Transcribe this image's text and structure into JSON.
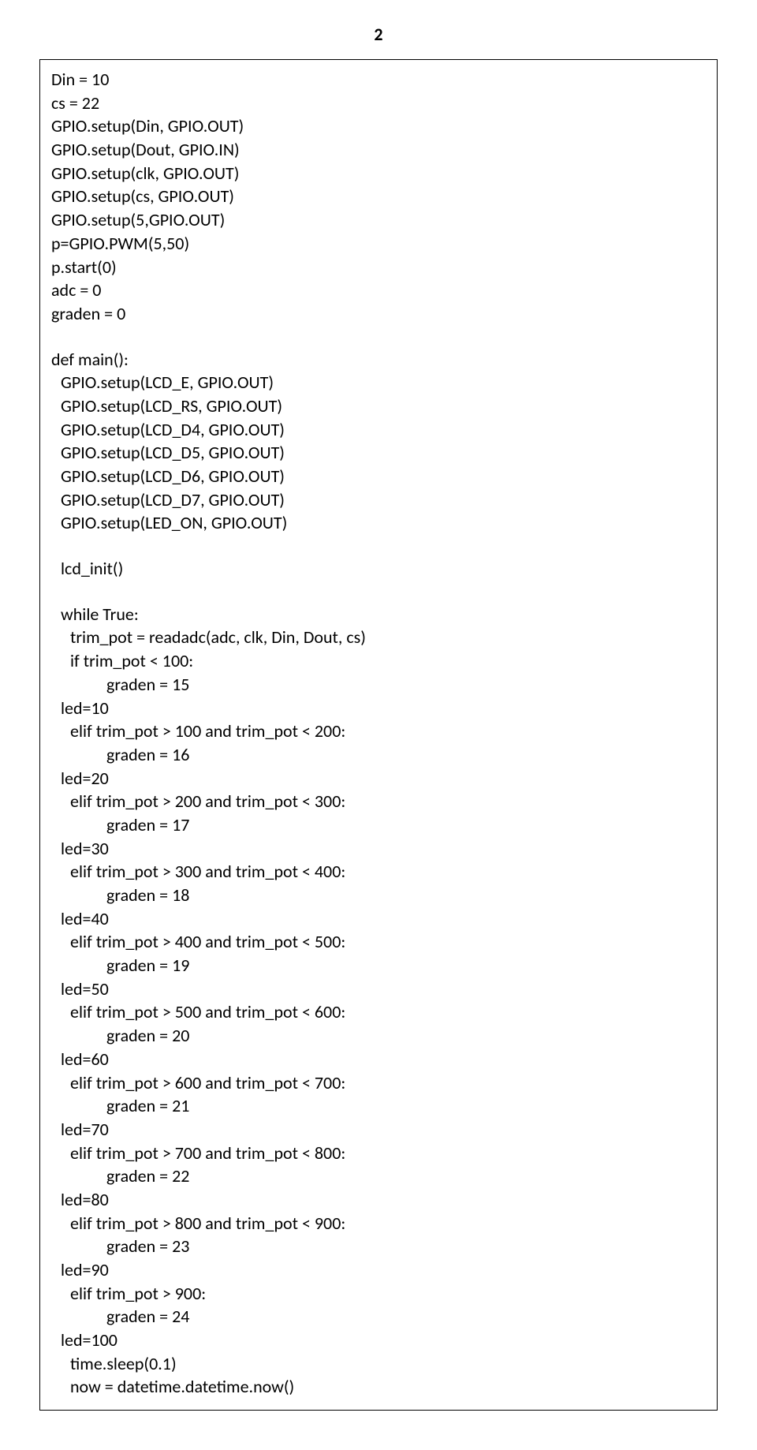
{
  "page_number": "2",
  "lines": [
    {
      "text": "Din = 10",
      "indent": 0
    },
    {
      "text": "cs = 22",
      "indent": 0
    },
    {
      "text": "GPIO.setup(Din, GPIO.OUT)",
      "indent": 0
    },
    {
      "text": "GPIO.setup(Dout, GPIO.IN)",
      "indent": 0
    },
    {
      "text": "GPIO.setup(clk, GPIO.OUT)",
      "indent": 0
    },
    {
      "text": "GPIO.setup(cs, GPIO.OUT)",
      "indent": 0
    },
    {
      "text": "GPIO.setup(5,GPIO.OUT)",
      "indent": 0
    },
    {
      "text": "p=GPIO.PWM(5,50)",
      "indent": 0
    },
    {
      "text": "p.start(0)",
      "indent": 0
    },
    {
      "text": "adc = 0",
      "indent": 0
    },
    {
      "text": "graden = 0",
      "indent": 0
    },
    {
      "blank": true
    },
    {
      "text": "def main():",
      "indent": 0
    },
    {
      "text": "GPIO.setup(LCD_E, GPIO.OUT)",
      "indent": 1
    },
    {
      "text": "GPIO.setup(LCD_RS, GPIO.OUT)",
      "indent": 1
    },
    {
      "text": "GPIO.setup(LCD_D4, GPIO.OUT)",
      "indent": 1
    },
    {
      "text": "GPIO.setup(LCD_D5, GPIO.OUT)",
      "indent": 1
    },
    {
      "text": "GPIO.setup(LCD_D6, GPIO.OUT)",
      "indent": 1
    },
    {
      "text": "GPIO.setup(LCD_D7, GPIO.OUT)",
      "indent": 1
    },
    {
      "text": "GPIO.setup(LED_ON, GPIO.OUT)",
      "indent": 1
    },
    {
      "blank": true
    },
    {
      "text": "lcd_init()",
      "indent": 1
    },
    {
      "blank": true
    },
    {
      "text": "while True:",
      "indent": 1
    },
    {
      "text": "trim_pot = readadc(adc, clk, Din, Dout, cs)",
      "indent": 2
    },
    {
      "text": "if trim_pot < 100:",
      "indent": 2
    },
    {
      "text": "graden = 15",
      "indent": 3
    },
    {
      "text": "led=10",
      "indent": 1
    },
    {
      "text": "elif trim_pot > 100 and trim_pot < 200:",
      "indent": 2
    },
    {
      "text": "graden = 16",
      "indent": 3
    },
    {
      "text": "led=20",
      "indent": 1
    },
    {
      "text": "elif trim_pot > 200 and trim_pot < 300:",
      "indent": 2
    },
    {
      "text": "graden = 17",
      "indent": 3
    },
    {
      "text": "led=30",
      "indent": 1
    },
    {
      "text": "elif trim_pot > 300 and trim_pot < 400:",
      "indent": 2
    },
    {
      "text": "graden = 18",
      "indent": 3
    },
    {
      "text": "led=40",
      "indent": 1
    },
    {
      "text": "elif trim_pot > 400 and trim_pot < 500:",
      "indent": 2
    },
    {
      "text": "graden = 19",
      "indent": 3
    },
    {
      "text": "led=50",
      "indent": 1
    },
    {
      "text": "elif trim_pot > 500 and trim_pot < 600:",
      "indent": 2
    },
    {
      "text": "graden = 20",
      "indent": 3
    },
    {
      "text": "led=60",
      "indent": 1
    },
    {
      "text": "elif trim_pot > 600 and trim_pot < 700:",
      "indent": 2
    },
    {
      "text": "graden = 21",
      "indent": 3
    },
    {
      "text": "led=70",
      "indent": 1
    },
    {
      "text": "elif trim_pot > 700 and trim_pot < 800:",
      "indent": 2
    },
    {
      "text": "graden = 22",
      "indent": 3
    },
    {
      "text": "led=80",
      "indent": 1
    },
    {
      "text": "elif trim_pot > 800 and trim_pot < 900:",
      "indent": 2
    },
    {
      "text": "graden = 23",
      "indent": 3
    },
    {
      "text": "led=90",
      "indent": 1
    },
    {
      "text": "elif trim_pot > 900:",
      "indent": 2
    },
    {
      "text": "graden = 24",
      "indent": 3
    },
    {
      "text": "led=100",
      "indent": 1
    },
    {
      "text": "time.sleep(0.1)",
      "indent": 2
    },
    {
      "text": "now = datetime.datetime.now()",
      "indent": 2
    }
  ]
}
